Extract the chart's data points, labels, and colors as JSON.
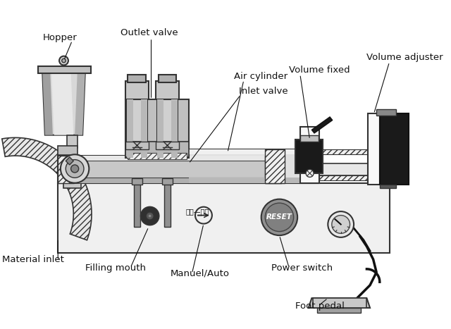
{
  "labels": {
    "hopper": "Hopper",
    "outlet_valve": "Outlet valve",
    "air_cylinder": "Air cylinder",
    "volume_fixed": "Volume fixed",
    "volume_adjuster": "Volume adjuster",
    "inlet_valve": "Inlet valve",
    "material_inlet": "Material inlet",
    "filling_mouth": "Filling mouth",
    "manuel_auto": "Manuel/Auto",
    "power_switch": "Power switch",
    "foot_pedal": "Foot pedal",
    "reset": "RESET",
    "manual_auto_cn": "手动—自动"
  },
  "colors": {
    "white": "#ffffff",
    "light_gray": "#e0e0e0",
    "mid_gray": "#b8b8b8",
    "dark_gray": "#888888",
    "very_dark": "#333333",
    "black": "#111111",
    "outline": "#444444",
    "hatch_bg": "#f0f0f0"
  }
}
